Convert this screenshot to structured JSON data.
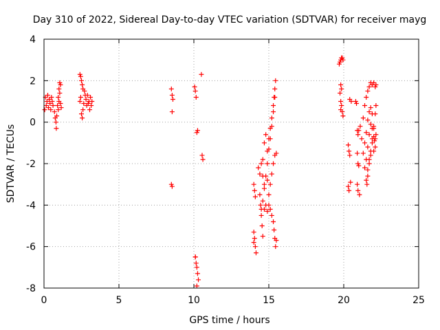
{
  "chart_data": {
    "type": "scatter",
    "title": "Day 310 of 2022, Sidereal Day-to-day VTEC variation (SDTVAR) for receiver mayg",
    "xlabel": "GPS time / hours",
    "ylabel": "SDTVAR / TECUs",
    "xlim": [
      0,
      25
    ],
    "ylim": [
      -8,
      4
    ],
    "x_ticks": [
      0,
      5,
      10,
      15,
      20,
      25
    ],
    "y_ticks": [
      -8,
      -6,
      -4,
      -2,
      0,
      2,
      4
    ],
    "x_tick_labels": [
      "0",
      "5",
      "10",
      "15",
      "20",
      "25"
    ],
    "y_tick_labels": [
      "-8",
      "-6",
      "-4",
      "-2",
      "0",
      "2",
      "4"
    ],
    "grid": true,
    "marker": "+",
    "color": "#ff0000",
    "points": [
      [
        0.05,
        0.6
      ],
      [
        0.1,
        1.2
      ],
      [
        0.15,
        0.8
      ],
      [
        0.2,
        1.0
      ],
      [
        0.25,
        1.3
      ],
      [
        0.3,
        0.7
      ],
      [
        0.35,
        1.1
      ],
      [
        0.4,
        0.9
      ],
      [
        0.45,
        0.6
      ],
      [
        0.5,
        1.2
      ],
      [
        0.55,
        1.0
      ],
      [
        0.6,
        0.8
      ],
      [
        0.7,
        0.5
      ],
      [
        0.75,
        0.2
      ],
      [
        0.8,
        0.0
      ],
      [
        0.82,
        -0.3
      ],
      [
        0.85,
        0.3
      ],
      [
        0.9,
        0.8
      ],
      [
        0.95,
        1.2
      ],
      [
        1.0,
        1.6
      ],
      [
        1.05,
        1.9
      ],
      [
        1.1,
        1.8
      ],
      [
        0.95,
        0.6
      ],
      [
        1.0,
        1.0
      ],
      [
        1.05,
        1.4
      ],
      [
        1.1,
        0.9
      ],
      [
        1.15,
        0.7
      ],
      [
        2.4,
        2.3
      ],
      [
        2.45,
        2.2
      ],
      [
        2.5,
        2.0
      ],
      [
        2.55,
        1.8
      ],
      [
        2.5,
        0.4
      ],
      [
        2.55,
        0.2
      ],
      [
        2.6,
        0.6
      ],
      [
        2.65,
        0.9
      ],
      [
        2.7,
        1.5
      ],
      [
        2.75,
        1.3
      ],
      [
        2.8,
        1.1
      ],
      [
        2.85,
        0.8
      ],
      [
        2.9,
        1.3
      ],
      [
        2.95,
        0.9
      ],
      [
        3.0,
        1.0
      ],
      [
        3.05,
        0.6
      ],
      [
        3.1,
        1.2
      ],
      [
        3.15,
        0.8
      ],
      [
        3.2,
        1.0
      ],
      [
        2.4,
        1.0
      ],
      [
        2.45,
        1.2
      ],
      [
        2.6,
        1.6
      ],
      [
        8.5,
        1.6
      ],
      [
        8.55,
        1.3
      ],
      [
        8.6,
        1.1
      ],
      [
        8.55,
        0.5
      ],
      [
        8.5,
        -3.0
      ],
      [
        8.55,
        -3.1
      ],
      [
        10.05,
        1.7
      ],
      [
        10.1,
        1.5
      ],
      [
        10.15,
        1.2
      ],
      [
        10.2,
        -0.5
      ],
      [
        10.25,
        -0.4
      ],
      [
        10.5,
        2.3
      ],
      [
        10.55,
        -1.6
      ],
      [
        10.6,
        -1.8
      ],
      [
        10.1,
        -6.5
      ],
      [
        10.15,
        -6.8
      ],
      [
        10.2,
        -7.0
      ],
      [
        10.25,
        -7.3
      ],
      [
        10.3,
        -7.6
      ],
      [
        10.2,
        -7.9
      ],
      [
        10.1,
        -6.5
      ],
      [
        14.0,
        -3.0
      ],
      [
        14.05,
        -3.3
      ],
      [
        14.1,
        -3.6
      ],
      [
        14.0,
        -5.3
      ],
      [
        14.05,
        -5.6
      ],
      [
        14.1,
        -6.0
      ],
      [
        14.15,
        -6.3
      ],
      [
        14.0,
        -5.8
      ],
      [
        14.3,
        -2.2
      ],
      [
        14.4,
        -2.5
      ],
      [
        14.5,
        -2.0
      ],
      [
        14.6,
        -1.8
      ],
      [
        14.7,
        -1.0
      ],
      [
        14.8,
        -0.6
      ],
      [
        14.9,
        -1.4
      ],
      [
        15.0,
        -0.8
      ],
      [
        15.1,
        -0.3
      ],
      [
        15.2,
        0.2
      ],
      [
        15.3,
        0.8
      ],
      [
        15.35,
        1.2
      ],
      [
        15.4,
        1.6
      ],
      [
        15.45,
        2.0
      ],
      [
        14.4,
        -3.5
      ],
      [
        14.45,
        -4.0
      ],
      [
        14.5,
        -4.5
      ],
      [
        14.55,
        -5.0
      ],
      [
        14.6,
        -5.5
      ],
      [
        14.5,
        -4.2
      ],
      [
        14.6,
        -3.8
      ],
      [
        14.7,
        -3.2
      ],
      [
        14.8,
        -2.6
      ],
      [
        14.9,
        -2.0
      ],
      [
        15.0,
        -1.3
      ],
      [
        15.1,
        -0.8
      ],
      [
        15.2,
        -0.2
      ],
      [
        15.3,
        0.5
      ],
      [
        15.4,
        1.2
      ],
      [
        14.7,
        -4.2
      ],
      [
        14.8,
        -4.0
      ],
      [
        14.9,
        -4.3
      ],
      [
        15.0,
        -4.0
      ],
      [
        15.1,
        -4.2
      ],
      [
        15.2,
        -4.5
      ],
      [
        15.3,
        -4.8
      ],
      [
        15.35,
        -5.2
      ],
      [
        15.4,
        -5.6
      ],
      [
        15.45,
        -6.0
      ],
      [
        15.5,
        -5.7
      ],
      [
        15.0,
        -3.5
      ],
      [
        15.1,
        -3.0
      ],
      [
        15.2,
        -2.5
      ],
      [
        15.3,
        -2.0
      ],
      [
        15.4,
        -1.6
      ],
      [
        15.5,
        -1.5
      ],
      [
        14.9,
        -2.8
      ],
      [
        14.6,
        -2.6
      ],
      [
        14.7,
        -3.0
      ],
      [
        19.7,
        2.8
      ],
      [
        19.75,
        2.9
      ],
      [
        19.8,
        3.0
      ],
      [
        19.85,
        3.1
      ],
      [
        19.9,
        3.1
      ],
      [
        19.95,
        3.0
      ],
      [
        19.8,
        1.8
      ],
      [
        19.85,
        1.6
      ],
      [
        19.75,
        1.4
      ],
      [
        19.8,
        1.0
      ],
      [
        19.85,
        0.8
      ],
      [
        19.9,
        0.5
      ],
      [
        19.95,
        0.3
      ],
      [
        19.8,
        0.6
      ],
      [
        20.4,
        1.1
      ],
      [
        20.5,
        1.0
      ],
      [
        20.3,
        -1.1
      ],
      [
        20.35,
        -1.4
      ],
      [
        20.4,
        -1.6
      ],
      [
        20.3,
        -3.1
      ],
      [
        20.35,
        -3.3
      ],
      [
        20.45,
        -2.9
      ],
      [
        20.8,
        1.0
      ],
      [
        20.85,
        0.9
      ],
      [
        20.9,
        -0.4
      ],
      [
        20.95,
        -0.6
      ],
      [
        21.0,
        -0.4
      ],
      [
        20.9,
        -1.5
      ],
      [
        20.95,
        -2.0
      ],
      [
        21.0,
        -2.1
      ],
      [
        20.9,
        -3.0
      ],
      [
        20.95,
        -3.3
      ],
      [
        21.05,
        -3.5
      ],
      [
        21.1,
        -0.2
      ],
      [
        21.2,
        -0.8
      ],
      [
        21.3,
        -1.5
      ],
      [
        21.4,
        -2.2
      ],
      [
        21.5,
        -2.8
      ],
      [
        21.55,
        -3.0
      ],
      [
        21.6,
        -2.6
      ],
      [
        21.7,
        -2.0
      ],
      [
        21.8,
        -1.4
      ],
      [
        21.9,
        -0.8
      ],
      [
        22.0,
        -0.2
      ],
      [
        22.1,
        0.4
      ],
      [
        22.15,
        0.8
      ],
      [
        21.3,
        0.2
      ],
      [
        21.4,
        0.8
      ],
      [
        21.5,
        1.2
      ],
      [
        21.6,
        1.5
      ],
      [
        21.7,
        1.7
      ],
      [
        21.8,
        1.9
      ],
      [
        21.9,
        1.8
      ],
      [
        22.0,
        1.9
      ],
      [
        22.1,
        1.7
      ],
      [
        22.15,
        1.8
      ],
      [
        21.4,
        -1.0
      ],
      [
        21.5,
        -0.5
      ],
      [
        21.6,
        0.1
      ],
      [
        21.7,
        0.5
      ],
      [
        21.8,
        0.7
      ],
      [
        21.9,
        0.4
      ],
      [
        22.0,
        -0.3
      ],
      [
        22.05,
        -0.9
      ],
      [
        22.1,
        -1.2
      ],
      [
        22.15,
        -0.6
      ],
      [
        21.5,
        -1.8
      ],
      [
        21.6,
        -1.2
      ],
      [
        21.7,
        -0.6
      ],
      [
        21.8,
        -0.1
      ],
      [
        21.9,
        -0.3
      ],
      [
        22.0,
        -0.7
      ],
      [
        21.6,
        -2.3
      ],
      [
        21.7,
        -1.8
      ],
      [
        21.8,
        -1.6
      ],
      [
        21.9,
        -1.0
      ],
      [
        22.0,
        -1.4
      ],
      [
        22.1,
        -0.8
      ]
    ]
  }
}
